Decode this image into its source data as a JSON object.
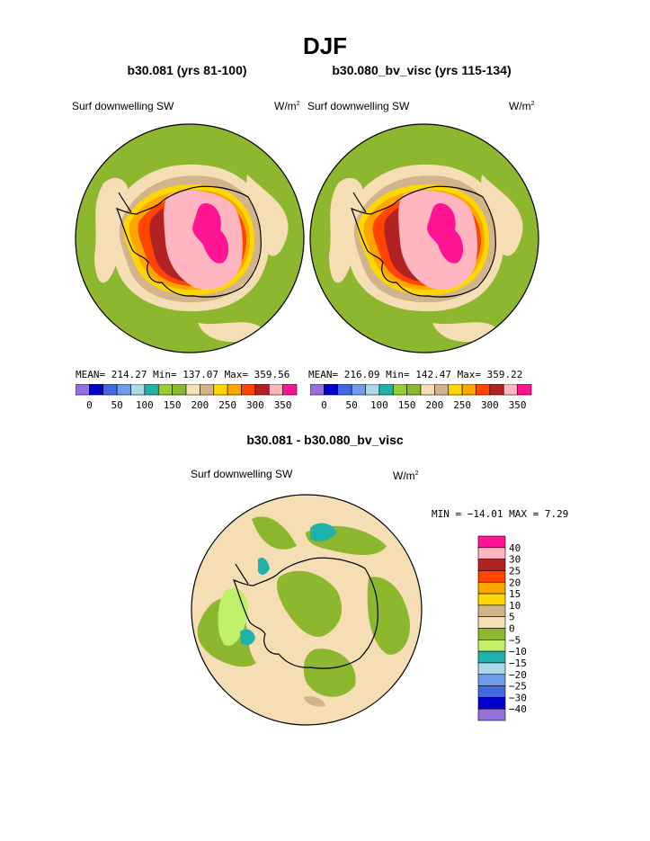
{
  "figure": {
    "season": "DJF",
    "units_base": "W/m",
    "units_exp": "2"
  },
  "panels": [
    {
      "case_title": "b30.081 (yrs 81-100)",
      "variable": "Surf downwelling SW",
      "stats": {
        "mean": "214.27",
        "min": "137.07",
        "max": "359.56"
      },
      "stats_text": "MEAN= 214.27  Min= 137.07  Max= 359.56"
    },
    {
      "case_title": "b30.080_bv_visc (yrs 115-134)",
      "variable": "Surf downwelling SW",
      "stats": {
        "mean": "216.09",
        "min": "142.47",
        "max": "359.22"
      },
      "stats_text": "MEAN= 216.09  Min= 142.47  Max= 359.22"
    }
  ],
  "difference": {
    "title": "b30.081 - b30.080_bv_visc",
    "variable": "Surf downwelling SW",
    "stats": {
      "min": "-14.01",
      "max": "7.29"
    },
    "stats_text": "MIN = −14.01 MAX =    7.29"
  },
  "chart_data": [
    {
      "type": "heatmap",
      "title": "b30.081 (yrs 81-100)",
      "variable": "Surf downwelling SW",
      "projection": "south polar stereographic",
      "color_levels": [
        0,
        25,
        50,
        75,
        100,
        125,
        150,
        175,
        200,
        225,
        250,
        275,
        300,
        325,
        350
      ],
      "colorbar_tick_labels": [
        "0",
        "50",
        "100",
        "150",
        "200",
        "250",
        "300",
        "350"
      ],
      "colorbar_colors": [
        "#9370db",
        "#0000cd",
        "#4169e1",
        "#6f9bea",
        "#add8e6",
        "#20b2aa",
        "#9acd32",
        "#8db72f",
        "#f5deb3",
        "#d2b48c",
        "#ffd700",
        "#ffa500",
        "#ff4500",
        "#b22222",
        "#ffb6c1",
        "#ff1493"
      ],
      "mean": 214.27,
      "min": 137.07,
      "max": 359.56
    },
    {
      "type": "heatmap",
      "title": "b30.080_bv_visc (yrs 115-134)",
      "variable": "Surf downwelling SW",
      "projection": "south polar stereographic",
      "color_levels": [
        0,
        25,
        50,
        75,
        100,
        125,
        150,
        175,
        200,
        225,
        250,
        275,
        300,
        325,
        350
      ],
      "colorbar_tick_labels": [
        "0",
        "50",
        "100",
        "150",
        "200",
        "250",
        "300",
        "350"
      ],
      "colorbar_colors": [
        "#9370db",
        "#0000cd",
        "#4169e1",
        "#6f9bea",
        "#add8e6",
        "#20b2aa",
        "#9acd32",
        "#8db72f",
        "#f5deb3",
        "#d2b48c",
        "#ffd700",
        "#ffa500",
        "#ff4500",
        "#b22222",
        "#ffb6c1",
        "#ff1493"
      ],
      "mean": 216.09,
      "min": 142.47,
      "max": 359.22
    },
    {
      "type": "heatmap",
      "title": "b30.081 - b30.080_bv_visc",
      "variable": "Surf downwelling SW",
      "projection": "south polar stereographic",
      "color_levels": [
        40,
        30,
        25,
        20,
        15,
        10,
        5,
        0,
        -5,
        -10,
        -15,
        -20,
        -25,
        -30,
        -40
      ],
      "colorbar_tick_labels": [
        "40",
        "30",
        "25",
        "20",
        "15",
        "10",
        "5",
        "0",
        "−5",
        "−10",
        "−15",
        "−20",
        "−25",
        "−30",
        "−40"
      ],
      "colorbar_colors": [
        "#ff1493",
        "#ffb6c1",
        "#b22222",
        "#ff4500",
        "#ffa500",
        "#ffd700",
        "#d2b48c",
        "#f5deb3",
        "#8db72f",
        "#c0ef6a",
        "#20b2aa",
        "#add8e6",
        "#6f9bea",
        "#4169e1",
        "#0000cd",
        "#9370db"
      ],
      "min": -14.01,
      "max": 7.29
    }
  ]
}
